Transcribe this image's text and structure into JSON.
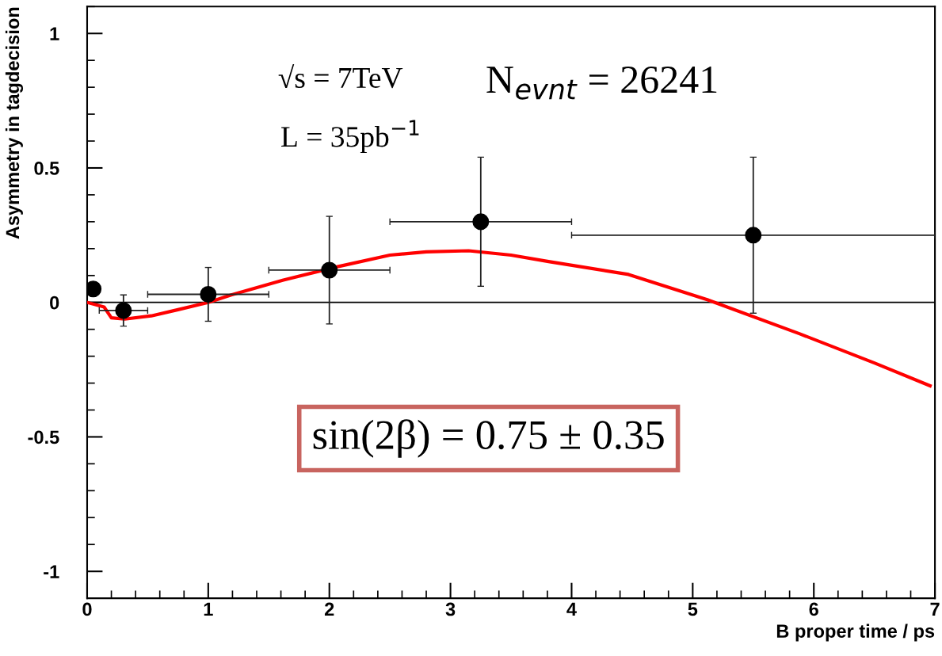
{
  "chart_data": {
    "type": "scatter",
    "xlabel": "B proper time / ps",
    "ylabel": "Asymmetry in tagdecision",
    "xlim": [
      0,
      7
    ],
    "xticks": [
      0,
      1,
      2,
      3,
      4,
      5,
      6,
      7
    ],
    "ylim": [
      -1.1,
      1.1
    ],
    "yticks": [
      -1,
      -0.5,
      0,
      0.5,
      1
    ],
    "grid": false,
    "legend": false,
    "marker": "circle",
    "ref_lines": [
      {
        "axis": "y",
        "value": 0,
        "label": null,
        "color": "#000000"
      }
    ],
    "series": [
      {
        "type": "line",
        "color": "#ff0000",
        "marker": "none",
        "x": [
          0,
          0.14,
          0.2,
          0.31,
          0.53,
          0.75,
          1.0,
          1.19,
          1.62,
          2.06,
          2.5,
          2.8,
          3.15,
          3.5,
          3.81,
          4.47,
          5.12,
          5.88,
          6.5,
          6.96
        ],
        "values": [
          0,
          -0.017,
          -0.057,
          -0.062,
          -0.05,
          -0.027,
          0,
          0.028,
          0.083,
          0.132,
          0.176,
          0.188,
          0.192,
          0.176,
          0.152,
          0.104,
          0.01,
          -0.116,
          -0.225,
          -0.31
        ]
      },
      {
        "color": "#000000",
        "x": [
          0.05,
          0.3,
          1.0,
          2.0,
          3.25,
          5.5
        ],
        "values": [
          0.05,
          -0.03,
          0.03,
          0.12,
          0.3,
          0.25
        ],
        "errors": [
          0.025,
          0.058,
          0.1,
          0.2,
          0.24,
          0.29
        ],
        "xerrors": [
          null,
          [
            0.1,
            0.5
          ],
          [
            0.5,
            1.5
          ],
          [
            1.5,
            2.5
          ],
          [
            2.5,
            4
          ],
          [
            4,
            7
          ]
        ]
      }
    ],
    "annotations": [
      "√s = 7TeV",
      "L = 35pb$^{−1}$",
      "N$_{evnt}$ = 26241",
      "sin(2β) = 0.75 ± 0.35"
    ]
  }
}
